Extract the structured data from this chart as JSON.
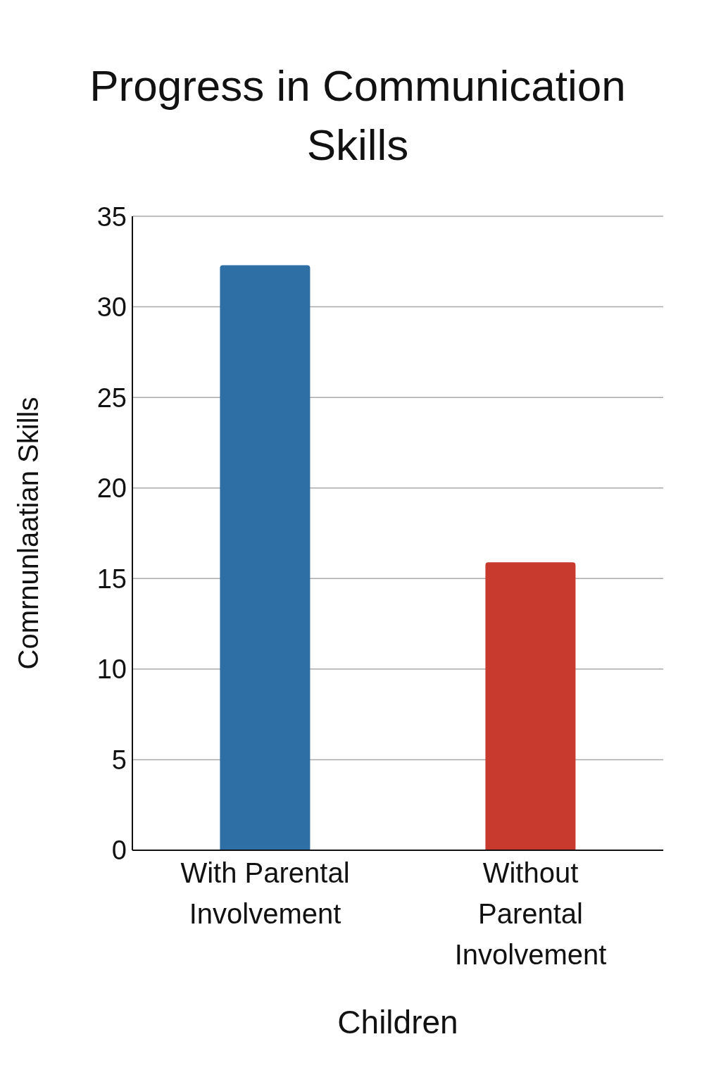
{
  "chart_data": {
    "type": "bar",
    "title": "Progress in Communication Skills",
    "xlabel": "Children",
    "ylabel": "Comrnunlaatian Skills",
    "categories": [
      "With Parental Involvement",
      "Without Parental Involvement"
    ],
    "values": [
      32.3,
      15.9
    ],
    "colors": [
      "#2e6fa5",
      "#c8392e"
    ],
    "ylim": [
      0,
      35
    ],
    "yticks": [
      0,
      5,
      10,
      15,
      20,
      25,
      30,
      35
    ],
    "grid": "y"
  }
}
